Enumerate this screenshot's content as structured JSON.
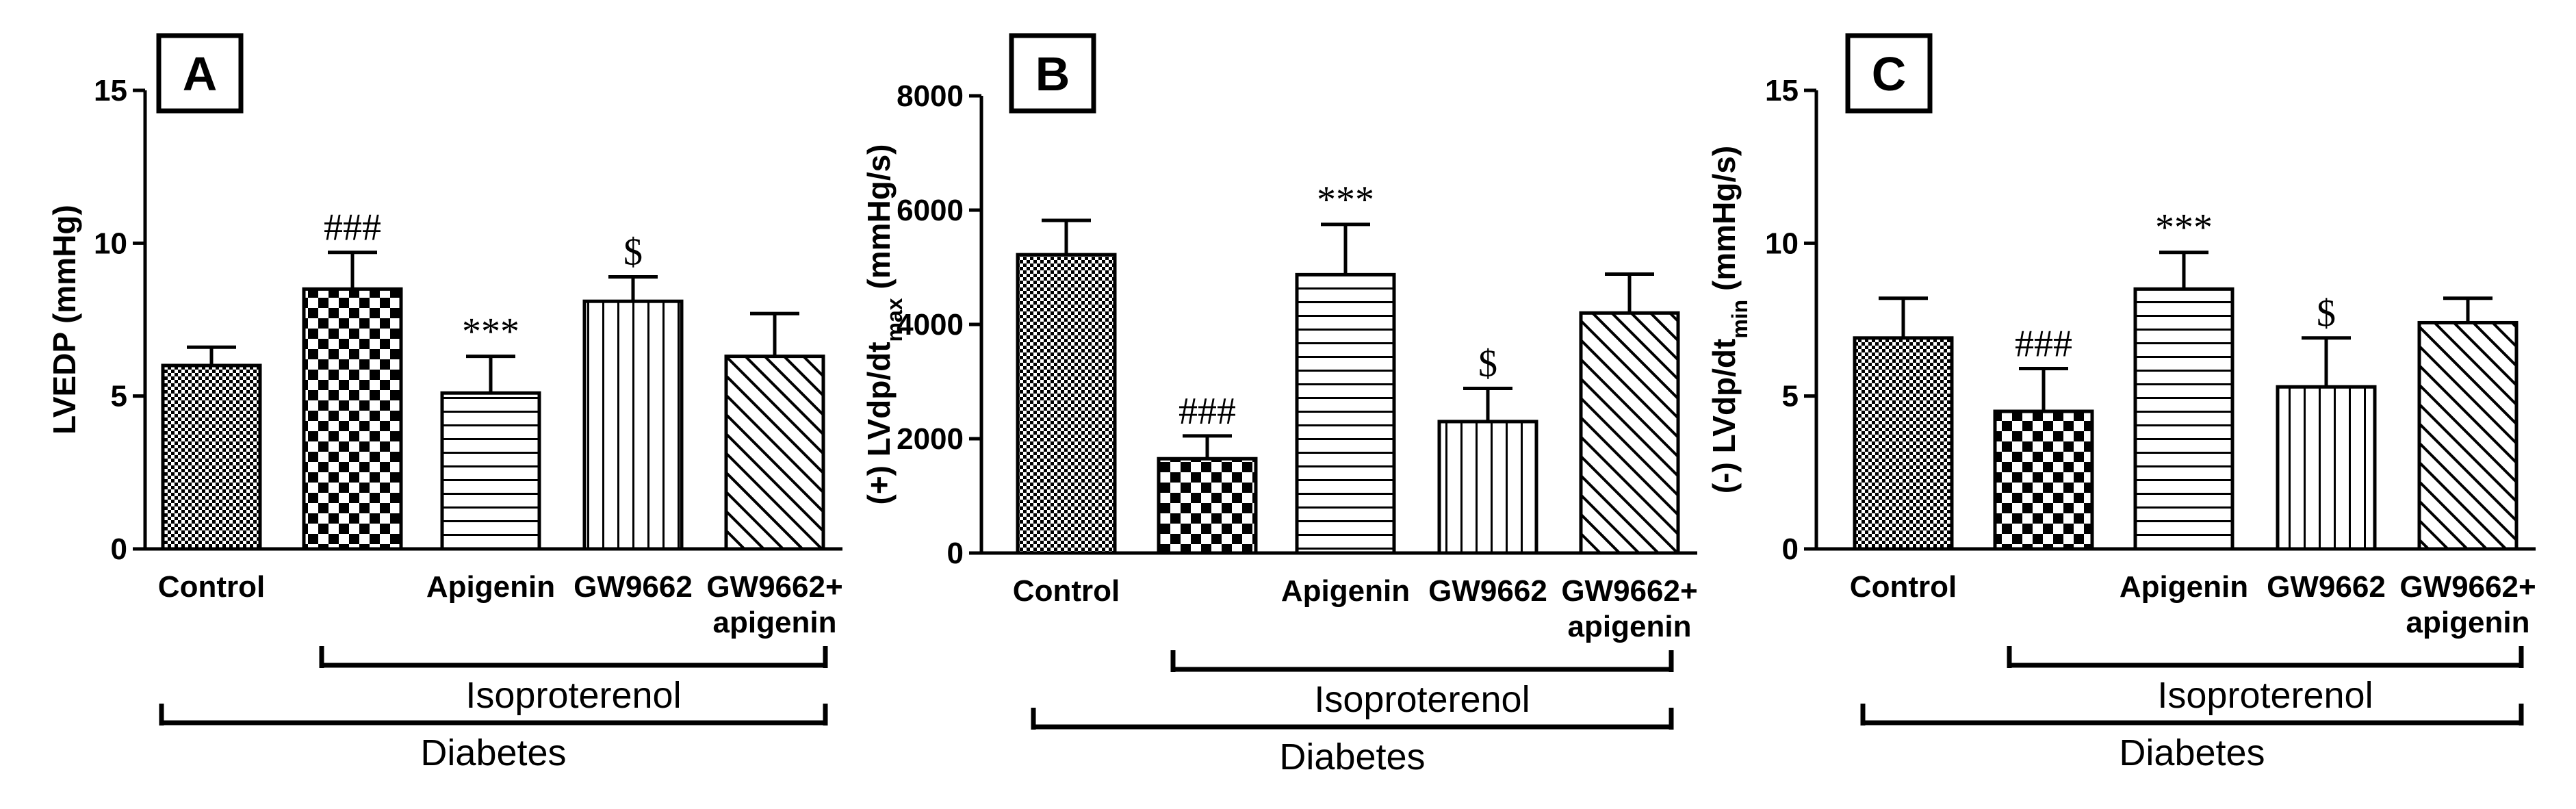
{
  "chart_data": [
    {
      "type": "bar",
      "panel": "A",
      "categories": [
        "Control",
        "",
        "Apigenin",
        "GW9662",
        "GW9662+\napigenin"
      ],
      "values": [
        6.0,
        8.5,
        5.1,
        8.1,
        6.3
      ],
      "errors": [
        0.6,
        1.2,
        1.2,
        0.8,
        1.4
      ],
      "significance": [
        "",
        "###",
        "***",
        "$",
        ""
      ],
      "patterns": [
        "fine-check",
        "checker",
        "horizontal",
        "vertical",
        "diagonal"
      ],
      "ylabel": "LVEDP (mmHg)",
      "ylabel_main": "LVEDP (mmHg)",
      "ylabel_sub": "",
      "ylabel_tail": "",
      "ylim": [
        0,
        15
      ],
      "yticks": [
        0,
        5,
        10,
        15
      ],
      "ytick_labels": [
        "0",
        "5",
        "10",
        "15"
      ],
      "group_inner": "Isoproterenol",
      "group_outer": "Diabetes",
      "grid": false
    },
    {
      "type": "bar",
      "panel": "B",
      "categories": [
        "Control",
        "",
        "Apigenin",
        "GW9662",
        "GW9662+\napigenin"
      ],
      "values": [
        5220,
        1650,
        4870,
        2300,
        4200
      ],
      "errors": [
        600,
        400,
        880,
        580,
        680
      ],
      "significance": [
        "",
        "###",
        "***",
        "$",
        ""
      ],
      "patterns": [
        "fine-check",
        "checker",
        "horizontal",
        "vertical",
        "diagonal"
      ],
      "ylabel": "(+) LVdp/dt max (mmHg/s)",
      "ylabel_main": "(+) LVdp/dt",
      "ylabel_sub": "max",
      "ylabel_tail": " (mmHg/s)",
      "ylim": [
        0,
        8000
      ],
      "yticks": [
        0,
        2000,
        4000,
        6000,
        8000
      ],
      "ytick_labels": [
        "0",
        "2000",
        "4000",
        "6000",
        "8000"
      ],
      "group_inner": "Isoproterenol",
      "group_outer": "Diabetes",
      "grid": false
    },
    {
      "type": "bar",
      "panel": "C",
      "categories": [
        "Control",
        "",
        "Apigenin",
        "GW9662",
        "GW9662+\napigenin"
      ],
      "values": [
        6.9,
        4.5,
        8.5,
        5.3,
        7.4
      ],
      "errors": [
        1.3,
        1.4,
        1.2,
        1.6,
        0.8
      ],
      "significance": [
        "",
        "###",
        "***",
        "$",
        ""
      ],
      "patterns": [
        "fine-check",
        "checker",
        "horizontal",
        "vertical",
        "diagonal"
      ],
      "ylabel": "(-) LVdp/dt min (mmHg/s)",
      "ylabel_main": "(-) LVdp/dt",
      "ylabel_sub": "min",
      "ylabel_tail": " (mmHg/s)",
      "ylim": [
        0,
        15
      ],
      "yticks": [
        0,
        5,
        10,
        15
      ],
      "ytick_labels": [
        "0",
        "5",
        "10",
        "15"
      ],
      "group_inner": "Isoproterenol",
      "group_outer": "Diabetes",
      "grid": false
    }
  ]
}
